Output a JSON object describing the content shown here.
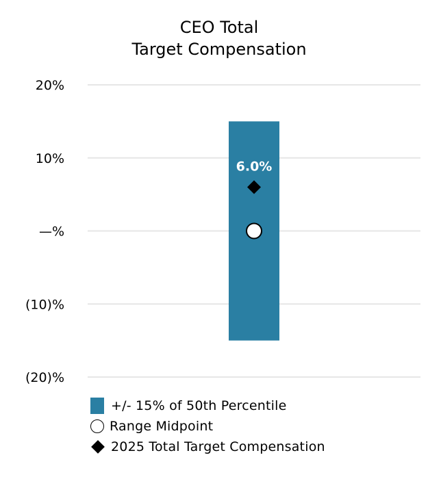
{
  "chart_data": {
    "type": "range-bar",
    "title_lines": [
      "CEO Total",
      "Target Compensation"
    ],
    "y_ticks": [
      {
        "value": 20,
        "label": "20%"
      },
      {
        "value": 10,
        "label": "10%"
      },
      {
        "value": 0,
        "label": "—%"
      },
      {
        "value": -10,
        "label": "(10)%"
      },
      {
        "value": -20,
        "label": "(20)%"
      }
    ],
    "ylim": [
      -20,
      20
    ],
    "grid": true,
    "range": {
      "low": -15,
      "high": 15,
      "midpoint": 0
    },
    "actual": {
      "value": 6.0,
      "label": "6.0%"
    },
    "colors": {
      "bar": "#2a7fa3",
      "grid": "#e6e6e6",
      "marker": "#000000",
      "midpoint_fill": "#ffffff",
      "data_label": "#ffffff"
    },
    "legend": [
      {
        "label": "+/- 15% of 50th Percentile",
        "icon": "square"
      },
      {
        "label": "Range Midpoint",
        "icon": "circle"
      },
      {
        "label": "2025 Total Target Compensation",
        "icon": "diamond"
      }
    ],
    "legend_position": "bottom-left"
  }
}
